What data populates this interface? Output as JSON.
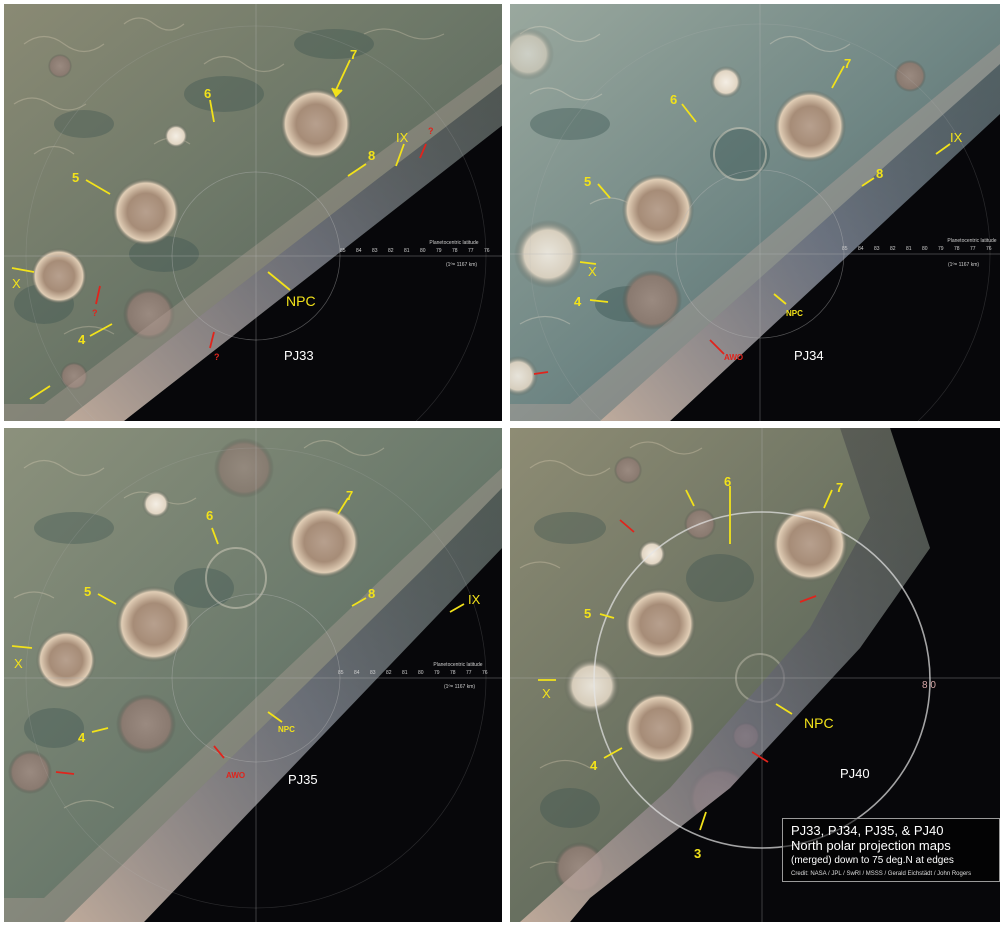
{
  "panels": [
    {
      "id": "pj33",
      "name": "PJ33",
      "labels": {
        "n5": "5",
        "n6": "6",
        "n7": "7",
        "n8": "8",
        "n4": "4",
        "roman_ix": "IX",
        "roman_x": "X",
        "npc": "NPC",
        "q1": "?",
        "q2": "?",
        "q3": "?"
      },
      "scale": {
        "title": "Planetocentric latitude",
        "ticks": [
          "85",
          "84",
          "83",
          "82",
          "81",
          "80",
          "79",
          "78",
          "77",
          "76"
        ],
        "unit": "(1º= 1167 km)"
      }
    },
    {
      "id": "pj34",
      "name": "PJ34",
      "labels": {
        "n5": "5",
        "n6": "6",
        "n7": "7",
        "n8": "8",
        "n4": "4",
        "roman_ix": "IX",
        "roman_x": "X",
        "npc": "NPC",
        "awo": "AWO"
      },
      "scale": {
        "title": "Planetocentric latitude",
        "ticks": [
          "85",
          "84",
          "83",
          "82",
          "81",
          "80",
          "79",
          "78",
          "77",
          "76"
        ],
        "unit": "(1º= 1167 km)"
      }
    },
    {
      "id": "pj35",
      "name": "PJ35",
      "labels": {
        "n5": "5",
        "n6": "6",
        "n7": "7",
        "n8": "8",
        "n4": "4",
        "roman_ix": "IX",
        "roman_x": "X",
        "npc": "NPC",
        "awo": "AWO"
      },
      "scale": {
        "title": "Planetocentric latitude",
        "ticks": [
          "85",
          "84",
          "83",
          "82",
          "81",
          "80",
          "79",
          "78",
          "77",
          "76"
        ],
        "unit": "(1º= 1167 km)"
      }
    },
    {
      "id": "pj40",
      "name": "PJ40",
      "labels": {
        "n5": "5",
        "n6": "6",
        "n7": "7",
        "n4": "4",
        "n3": "3",
        "roman_x": "X",
        "npc": "NPC",
        "ring80": "8 0"
      }
    }
  ],
  "credit": {
    "title": "PJ33, PJ34, PJ35, & PJ40",
    "subtitle": "North polar projection maps",
    "note": "(merged) down to 75 deg.N at edges",
    "credit_line": "Credit: NASA / JPL / SwRI / MSSS / Gerald Eichstädt / John Rogers"
  },
  "colors": {
    "annotation_yellow": "#f2e21a",
    "annotation_red": "#e0241c",
    "background_white": "#ffffff",
    "space_black": "#050507"
  }
}
